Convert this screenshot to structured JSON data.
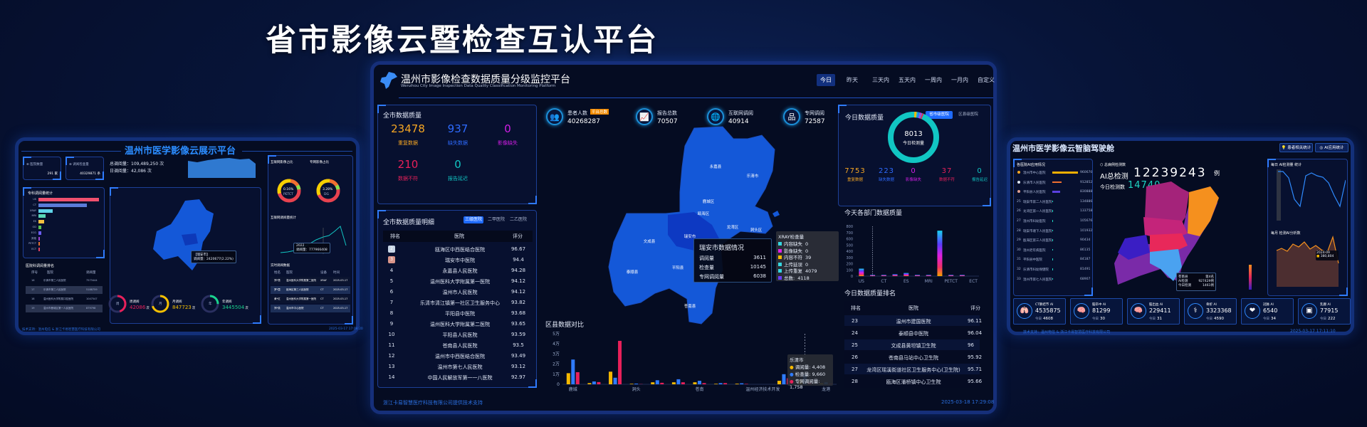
{
  "banner_title": "省市影像云暨检查互认平台",
  "colors": {
    "accent": "#2f7bff",
    "orange": "#f5a623",
    "blue": "#2e6bff",
    "magenta": "#d21ee6",
    "pink": "#e8205a",
    "teal": "#11c6c3",
    "map_blue": "#1458d8"
  },
  "left_panel": {
    "title": "温州市医学影像云展示平台",
    "cards": [
      {
        "label": "医院数量",
        "value": "291 家",
        "icon": "hospital-icon"
      },
      {
        "label": "调阅检查量",
        "value": "40329871 条",
        "icon": "exam-icon"
      }
    ],
    "total_label": "总调阅量：109,489,250 次",
    "daily_label": "日调阅量：42,086 次",
    "specialty_title": "专科调阅量统计",
    "specialty_chart": {
      "type": "bar",
      "categories": [
        "US",
        "CT",
        "XRAY",
        "MRI",
        "ES",
        "OD",
        "ECG",
        "其他",
        "PETCT",
        "ECT"
      ],
      "values": [
        100,
        80,
        23,
        12,
        9,
        5,
        5,
        2,
        2,
        2
      ]
    },
    "ranking_title": "医院科调阅量排名",
    "ranking_headers": [
      "序号",
      "医院",
      "调阅量"
    ],
    "ranking_rows": [
      [
        "16",
        "乐清市第三人民医院",
        "7573444"
      ],
      [
        "17",
        "乐清市第三人民医院",
        "5188759"
      ],
      [
        "18",
        "温州医科大学附属口腔医院",
        "1047547"
      ],
      [
        "19",
        "温州市鹿城区第一人民医院",
        "879798"
      ]
    ],
    "donut1": {
      "title": "互联网影像占比",
      "pct": "0.16%",
      "label": "PETCT"
    },
    "donut2": {
      "title": "专网影像占比",
      "pct": "3.28%",
      "label": "DG"
    },
    "line_title": "互联网调阅量统计",
    "line_tooltip": [
      "2022",
      "调阅量：777966408"
    ],
    "map_tooltip": [
      "【瑞安市】",
      "调阅量：2420677(2.22%)"
    ],
    "rings": [
      {
        "char": "周",
        "label": "周调阅",
        "value": "42086",
        "unit": "次",
        "color": "#e8205a",
        "pct": 0.45
      },
      {
        "char": "月",
        "label": "月调阅",
        "value": "847723",
        "unit": "次",
        "color": "#f5c000",
        "pct": 0.7
      },
      {
        "char": "年",
        "label": "年调阅",
        "value": "3445504",
        "unit": "次",
        "color": "#19d38e",
        "pct": 0.25
      }
    ],
    "realtime_title": "实时调阅数据",
    "realtime_headers": [
      "姓名",
      "医院",
      "设备",
      "时间"
    ],
    "realtime_rows": [
      [
        "郑*慧",
        "温州医科大学附属第二医院",
        "XRAY",
        "2025-03-17"
      ],
      [
        "罗*霞",
        "瓯海区第三人民医院",
        "CT",
        "2025-03-17"
      ],
      [
        "黄*红",
        "温州医科大学附属第一医院",
        "CT",
        "2025-03-17"
      ],
      [
        "郑*英",
        "温州市中心医院",
        "CT",
        "2025-03-17"
      ]
    ],
    "footer": "技术支持：温州电信 & 浙江卡易智慧医疗科技有限公司",
    "datetime": "2025-03-17 17:08:20"
  },
  "center_panel": {
    "title": "温州市影像检查数据质量分级监控平台",
    "subtitle": "Wenzhou City Image Inspection Data Quality Classification Monitoring Platform",
    "time_tabs": [
      "今日",
      "昨天",
      "三天内",
      "五天内",
      "一周内",
      "一月内",
      "自定义"
    ],
    "active_tab": "今日",
    "city_quality": {
      "title": "全市数据质量",
      "items": [
        {
          "value": "23478",
          "label": "重复数据",
          "color": "#f5a623"
        },
        {
          "value": "937",
          "label": "缺失数据",
          "color": "#2e6bff"
        },
        {
          "value": "0",
          "label": "影像缺失",
          "color": "#d21ee6"
        },
        {
          "value": "210",
          "label": "数据不符",
          "color": "#e8205a"
        },
        {
          "value": "0",
          "label": "报告延迟",
          "color": "#11c6c3"
        }
      ]
    },
    "stats": [
      {
        "label": "患者人数",
        "badge": "平台总数",
        "value": "40268287",
        "icon": "patients-icon"
      },
      {
        "label": "报告总数",
        "value": "70507",
        "icon": "report-icon"
      },
      {
        "label": "互联网调阅",
        "value": "40914",
        "icon": "globe-icon"
      },
      {
        "label": "专网调阅",
        "value": "72587",
        "icon": "network-icon"
      }
    ],
    "detail": {
      "title": "全市数据质量明细",
      "tabs": [
        "三级医院",
        "二甲医院",
        "二乙医院"
      ],
      "active_tab": "三级医院",
      "headers": [
        "排名",
        "医院",
        "评分"
      ],
      "rows": [
        [
          "2",
          "瓯海区中西医结合医院",
          "96.67"
        ],
        [
          "3",
          "瑞安市中医院",
          "94.4"
        ],
        [
          "4",
          "永嘉县人民医院",
          "94.28"
        ],
        [
          "5",
          "温州医科大学附属第一医院",
          "94.12"
        ],
        [
          "6",
          "温州市人民医院",
          "94.12"
        ],
        [
          "7",
          "乐清市清江镇第一社区卫生服务中心",
          "93.82"
        ],
        [
          "8",
          "平阳县中医院",
          "93.68"
        ],
        [
          "9",
          "温州医科大学附属第二医院",
          "93.65"
        ],
        [
          "10",
          "平阳县人民医院",
          "93.59"
        ],
        [
          "11",
          "苍南县人民医院",
          "93.5"
        ],
        [
          "12",
          "温州市中西医结合医院",
          "93.49"
        ],
        [
          "13",
          "温州市第七人民医院",
          "93.12"
        ],
        [
          "14",
          "中国人民解放军第一一八医院",
          "92.97"
        ]
      ]
    },
    "map": {
      "regions": [
        "永嘉县",
        "乐清市",
        "鹿城区",
        "瓯海区",
        "龙湾区",
        "洞头区",
        "瑞安市",
        "文成县",
        "泰顺县",
        "平阳县",
        "苍南县"
      ],
      "highlighted": "瑞安市",
      "tooltip": {
        "title": "瑞安市数据情况",
        "rows": [
          [
            "调阅量",
            "3611"
          ],
          [
            "检查量",
            "10145"
          ],
          [
            "专网调阅量",
            "6038"
          ]
        ]
      }
    },
    "district_chart": {
      "type": "bar",
      "title": "区县数据对比",
      "categories": [
        "鹿城",
        "",
        "",
        "洞头",
        "",
        "",
        "苍南",
        "",
        "",
        "温州经济技术开发",
        "",
        "乐清市",
        "龙港"
      ],
      "tick_labels": [
        "0",
        "1万",
        "2万",
        "3万",
        "4万",
        "5万"
      ],
      "ylim": [
        0,
        50000
      ],
      "series": [
        {
          "name": "调阅量",
          "color": "#f5b800",
          "values": [
            11000,
            1200,
            12500,
            500,
            2000,
            2000,
            2000,
            500,
            600,
            0,
            3500,
            4408,
            1000
          ]
        },
        {
          "name": "检查量",
          "color": "#2f7bff",
          "values": [
            24500,
            2800,
            6500,
            700,
            4000,
            5000,
            3500,
            1200,
            1000,
            0,
            10000,
            9660,
            2000
          ]
        },
        {
          "name": "专网调阅量",
          "color": "#e8205a",
          "values": [
            12000,
            2200,
            43000,
            200,
            1500,
            2000,
            1200,
            1200,
            400,
            0,
            6000,
            1758,
            500
          ]
        }
      ],
      "tooltip": {
        "title": "乐清市",
        "rows": [
          "调阅量: 4,408",
          "检查量: 9,660",
          "专网调阅量: 1,758"
        ]
      }
    },
    "today_quality": {
      "title": "今日数据质量",
      "toggle": [
        "省市级医院",
        "区县级医院"
      ],
      "active_toggle": "省市级医院",
      "total": "8013",
      "total_label": "今日检测量",
      "items": [
        {
          "value": "7753",
          "label": "重复数据",
          "color": "#f5a623"
        },
        {
          "value": "223",
          "label": "缺失数据",
          "color": "#2e6bff"
        },
        {
          "value": "0",
          "label": "影像缺失",
          "color": "#d21ee6"
        },
        {
          "value": "37",
          "label": "数据不符",
          "color": "#e8205a"
        },
        {
          "value": "0",
          "label": "报告延迟",
          "color": "#11c6c3"
        }
      ]
    },
    "dept_chart": {
      "type": "bar",
      "title": "今天各部门数据质量",
      "categories": [
        "US",
        "",
        "CT",
        "",
        "ES",
        "",
        "MRI",
        "",
        "PETCT",
        "",
        "ECT"
      ],
      "values": [
        120,
        20,
        20,
        30,
        50,
        20,
        20,
        730,
        20,
        20,
        0
      ],
      "ylim": [
        0,
        800
      ],
      "tick_labels": [
        "0",
        "100",
        "200",
        "300",
        "400",
        "500",
        "600",
        "700",
        "800"
      ],
      "tooltip": {
        "title": "XRAY检查量",
        "rows": [
          [
            "内容缺失",
            "0"
          ],
          [
            "影像缺失",
            "0"
          ],
          [
            "内容不符",
            "39"
          ],
          [
            "上传延误",
            "0"
          ],
          [
            "上传重复",
            "4079"
          ],
          [
            "总数:",
            "4118"
          ]
        ]
      }
    },
    "ranking": {
      "title": "今日数据质量排名",
      "headers": [
        "排名",
        "医院",
        "评分"
      ],
      "rows": [
        [
          "23",
          "温州市建国医院",
          "96.11"
        ],
        [
          "24",
          "泰顺县中医院",
          "96.04"
        ],
        [
          "25",
          "文成县黄坦镇卫生院",
          "96"
        ],
        [
          "26",
          "苍南县马站中心卫生院",
          "95.92"
        ],
        [
          "27",
          "龙湾区瑶溪街道社区卫生服务中心(卫生院)",
          "95.71"
        ],
        [
          "28",
          "瓯海区潘桥镇中心卫生院",
          "95.66"
        ]
      ]
    },
    "footer": "浙江卡易智慧医疗科技有限公司提供技术支持",
    "datetime": "2025-03-18 17:29:08"
  },
  "right_panel": {
    "title": "温州市医学影像云智脑驾驶舱",
    "buttons": [
      "患者相关统计",
      "AI应用统计"
    ],
    "list_title": "各医院AI应用情况",
    "list": [
      [
        "",
        "温州市中心医院",
        "960670"
      ],
      [
        "",
        "乐清市人民医院",
        "912852"
      ],
      [
        "",
        "平阳县人民医院",
        "830888"
      ],
      [
        "25",
        "瑞安市第二人民医院",
        "134886"
      ],
      [
        "26",
        "龙湾区第一人民医院",
        "133758"
      ],
      [
        "27",
        "温州市妇幼医院",
        "105676"
      ],
      [
        "28",
        "瑞安市塘下人民医院",
        "101932"
      ],
      [
        "29",
        "瓯海区第三人民医院",
        "90434"
      ],
      [
        "30",
        "温州老年病医院",
        "86135"
      ],
      [
        "31",
        "平阳县中医院",
        "84187"
      ],
      [
        "32",
        "乐清市妇幼保健院",
        "81491"
      ],
      [
        "33",
        "温州市第七人民医院",
        "68907"
      ]
    ],
    "total_title": "总病例检测数",
    "ai_total_label": "AI总检测",
    "ai_total": "12239243",
    "unit": "例",
    "today_label": "今日检测数",
    "today_value": "14740",
    "map_tooltip": {
      "title": "苍南县",
      "rank": "第4名",
      "rows": [
        [
          "AI检测",
          "927429例"
        ],
        [
          "今日检测",
          "1461例"
        ]
      ]
    },
    "daily_title": "每日 AI检测量 统计",
    "monthly_title": "每月 检测AI分析数",
    "monthly_tooltip": [
      "2024-09",
      "380,804"
    ],
    "cards": [
      {
        "label": "CT肺结节 AI",
        "value": "4535875",
        "today": "4608",
        "icon": "lungs-icon"
      },
      {
        "label": "脑卒中 AI",
        "value": "81299",
        "today": "30",
        "icon": "brain-icon"
      },
      {
        "label": "脑出血 AI",
        "value": "229411",
        "today": "31",
        "icon": "brain-icon"
      },
      {
        "label": "骨折 AI",
        "value": "3323368",
        "today": "4590",
        "icon": "ribs-icon"
      },
      {
        "label": "冠脉 AI",
        "value": "6540",
        "today": "34",
        "icon": "heart-icon"
      },
      {
        "label": "乳腺 AI",
        "value": "77915",
        "today": "222",
        "icon": "breast-scan-icon"
      }
    ],
    "card_today_label": "今日",
    "footer": "技术支持：温州电信 & 浙江卡易智慧医疗科技有限公司",
    "datetime": "2025-03-17 17:11:10"
  }
}
